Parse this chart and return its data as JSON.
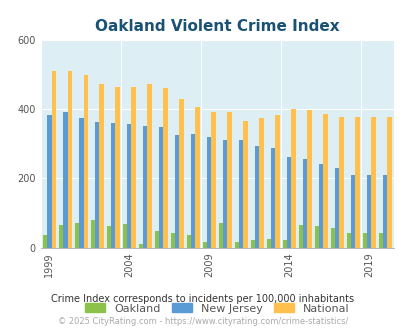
{
  "title": "Oakland Violent Crime Index",
  "title_color": "#1a5276",
  "fig_bg_color": "#ffffff",
  "plot_bg_color": "#ddeef5",
  "actual_years": [
    1999,
    2000,
    2001,
    2002,
    2003,
    2004,
    2005,
    2006,
    2007,
    2008,
    2009,
    2010,
    2011,
    2012,
    2013,
    2014,
    2015,
    2016,
    2017,
    2018,
    2019,
    2020
  ],
  "oak_data": [
    35,
    65,
    70,
    80,
    62,
    68,
    10,
    48,
    43,
    35,
    15,
    70,
    15,
    22,
    25,
    22,
    65,
    62,
    57,
    43,
    43,
    43
  ],
  "nj_data": [
    382,
    392,
    375,
    362,
    358,
    356,
    352,
    348,
    325,
    328,
    318,
    310,
    310,
    293,
    288,
    262,
    255,
    242,
    228,
    208,
    208,
    208
  ],
  "nat_data": [
    508,
    508,
    499,
    472,
    462,
    463,
    472,
    460,
    430,
    405,
    390,
    390,
    365,
    375,
    383,
    400,
    398,
    385,
    378,
    378,
    378,
    378
  ],
  "ylim": [
    0,
    600
  ],
  "yticks": [
    0,
    200,
    400,
    600
  ],
  "tick_years": [
    1999,
    2004,
    2009,
    2014,
    2019
  ],
  "footer_note": "Crime Index corresponds to incidents per 100,000 inhabitants",
  "footer_url": "© 2025 CityRating.com - https://www.cityrating.com/crime-statistics/",
  "oakland_color": "#8bc34a",
  "nj_color": "#5b9bd5",
  "national_color": "#ffc04d",
  "bar_width": 0.27,
  "title_fontsize": 11,
  "tick_fontsize": 7,
  "legend_fontsize": 8,
  "footer_note_fontsize": 7,
  "footer_url_fontsize": 6
}
